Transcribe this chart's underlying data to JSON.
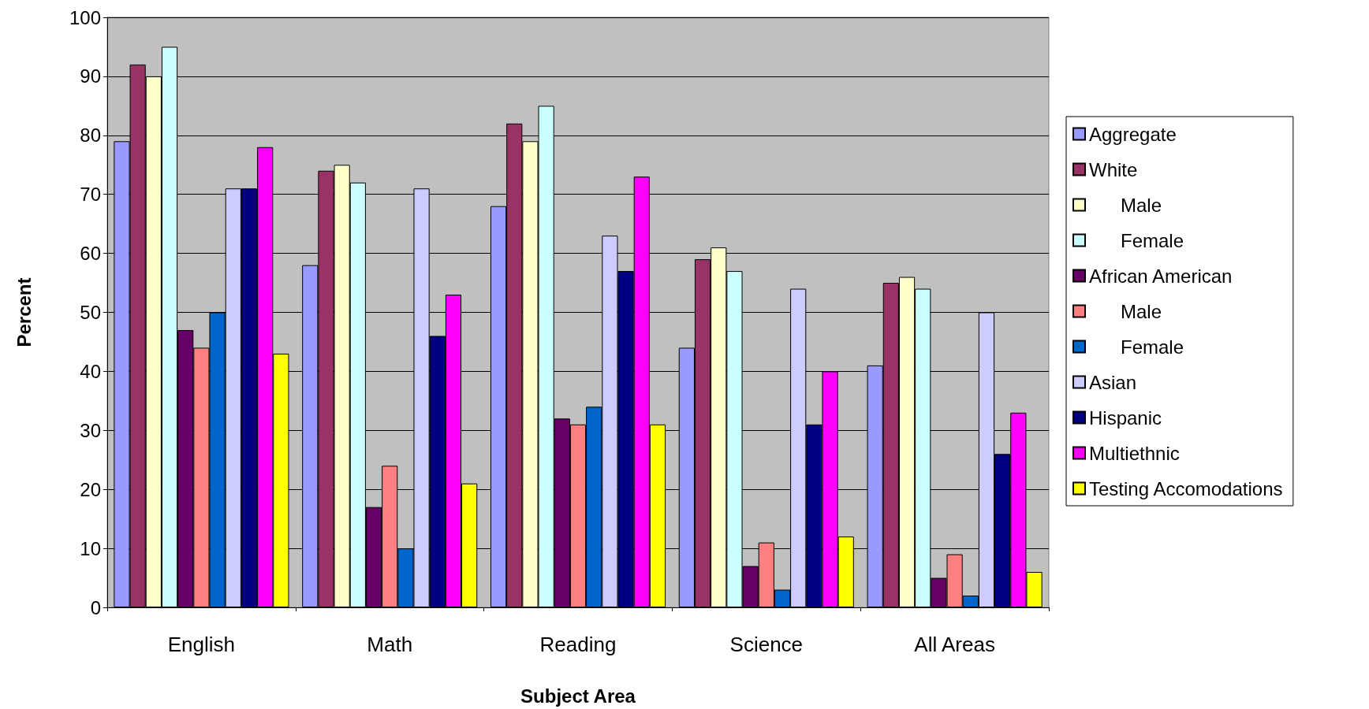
{
  "chart_data": {
    "type": "bar",
    "xlabel": "Subject Area",
    "ylabel": "Percent",
    "categories": [
      "English",
      "Math",
      "Reading",
      "Science",
      "All Areas"
    ],
    "series": [
      {
        "name": "Aggregate",
        "color": "#9999ff",
        "values": [
          79,
          58,
          68,
          44,
          41
        ]
      },
      {
        "name": "White",
        "color": "#993366",
        "values": [
          92,
          74,
          82,
          59,
          55
        ]
      },
      {
        "name": "      Male",
        "color": "#ffffcc",
        "values": [
          90,
          75,
          79,
          61,
          56
        ]
      },
      {
        "name": "      Female",
        "color": "#ccffff",
        "values": [
          95,
          72,
          85,
          57,
          54
        ]
      },
      {
        "name": "African American",
        "color": "#660066",
        "values": [
          47,
          17,
          32,
          7,
          5
        ]
      },
      {
        "name": "      Male",
        "color": "#ff8080",
        "values": [
          44,
          24,
          31,
          11,
          9
        ]
      },
      {
        "name": "      Female",
        "color": "#0066cc",
        "values": [
          50,
          10,
          34,
          3,
          2
        ]
      },
      {
        "name": "Asian",
        "color": "#ccccff",
        "values": [
          71,
          71,
          63,
          54,
          50
        ]
      },
      {
        "name": "Hispanic",
        "color": "#000080",
        "values": [
          71,
          46,
          57,
          31,
          26
        ]
      },
      {
        "name": "Multiethnic",
        "color": "#ff00ff",
        "values": [
          78,
          53,
          73,
          40,
          33
        ]
      },
      {
        "name": "Testing Accomodations",
        "color": "#ffff00",
        "values": [
          43,
          21,
          31,
          12,
          6
        ]
      }
    ],
    "ylim": [
      0,
      100
    ],
    "yticks": [
      0,
      10,
      20,
      30,
      40,
      50,
      60,
      70,
      80,
      90,
      100
    ],
    "grid": "y",
    "legend": "right"
  }
}
